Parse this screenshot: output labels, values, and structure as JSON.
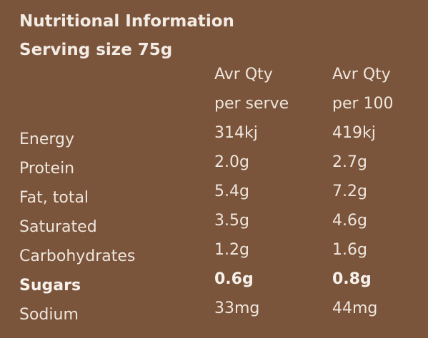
{
  "colors": {
    "background": "#7a543b",
    "text": "#efe6dd"
  },
  "panel": {
    "title": "Nutritional Information",
    "serving": "Serving size 75g"
  },
  "columns": {
    "col1": [
      "Avr Qty",
      "per serve"
    ],
    "col2": [
      "Avr Qty",
      "per 100"
    ]
  },
  "rows": [
    {
      "label": "Energy",
      "per_serve": "314kj",
      "per_100": "419kj"
    },
    {
      "label": "Protein",
      "per_serve": "2.0g",
      "per_100": "2.7g"
    },
    {
      "label": "Fat, total",
      "per_serve": "5.4g",
      "per_100": "7.2g"
    },
    {
      "label": "Saturated",
      "per_serve": "3.5g",
      "per_100": "4.6g"
    },
    {
      "label": "Carbohydrates",
      "per_serve": "1.2g",
      "per_100": "1.6g"
    },
    {
      "label": "Sugars",
      "per_serve": "0.6g",
      "per_100": "0.8g"
    },
    {
      "label": "Sodium",
      "per_serve": "33mg",
      "per_100": "44mg"
    }
  ]
}
